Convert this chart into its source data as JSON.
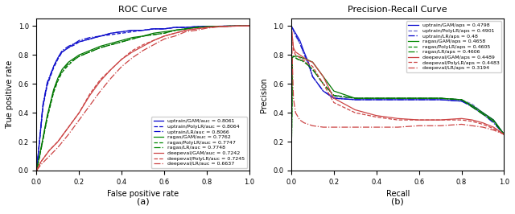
{
  "roc_title": "ROC Curve",
  "pr_title": "Precision-Recall Curve",
  "roc_xlabel": "False positive rate",
  "roc_ylabel": "True positive rate",
  "pr_xlabel": "Recall",
  "pr_ylabel": "Precision",
  "fig_label_a": "(a)",
  "fig_label_b": "(b)",
  "roc_legend": [
    {
      "label": "uptrain/GAM/auc = 0.8061",
      "color": "#0000cc",
      "ls": "-"
    },
    {
      "label": "uptrain/PolyLR/auc = 0.8064",
      "color": "#0000cc",
      "ls": "--"
    },
    {
      "label": "uptrain/LR/auc = 0.8066",
      "color": "#0000cc",
      "ls": "-."
    },
    {
      "label": "ragas/GAM/auc = 0.7762",
      "color": "#008800",
      "ls": "-"
    },
    {
      "label": "ragas/PolyLR/auc = 0.7747",
      "color": "#008800",
      "ls": "--"
    },
    {
      "label": "ragas/LR/auc = 0.7748",
      "color": "#008800",
      "ls": "-."
    },
    {
      "label": "deepeval/GAM/auc = 0.7242",
      "color": "#cc4444",
      "ls": "-"
    },
    {
      "label": "deepeval/PolyLR/auc = 0.7245",
      "color": "#cc4444",
      "ls": "--"
    },
    {
      "label": "deepeval/LR/auc = 0.6637",
      "color": "#cc4444",
      "ls": "-."
    }
  ],
  "pr_legend": [
    {
      "label": "uptrain/GAM/aps = 0.4798",
      "color": "#0000cc",
      "ls": "-"
    },
    {
      "label": "uptrain/PolyLR/aps = 0.4901",
      "color": "#6666cc",
      "ls": "--"
    },
    {
      "label": "uptrain/LR/aps = 0.48",
      "color": "#0000cc",
      "ls": "-."
    },
    {
      "label": "ragas/GAM/aps = 0.4658",
      "color": "#008800",
      "ls": "-"
    },
    {
      "label": "ragas/PolyLR/aps = 0.4605",
      "color": "#008800",
      "ls": "--"
    },
    {
      "label": "ragas/LR/aps = 0.4606",
      "color": "#008800",
      "ls": "-."
    },
    {
      "label": "deepeval/GAM/aps = 0.4489",
      "color": "#cc4444",
      "ls": "-"
    },
    {
      "label": "deepeval/PolyLR/aps = 0.4483",
      "color": "#cc4444",
      "ls": "--"
    },
    {
      "label": "deepeval/LR/aps = 0.3194",
      "color": "#cc4444",
      "ls": "-."
    }
  ]
}
